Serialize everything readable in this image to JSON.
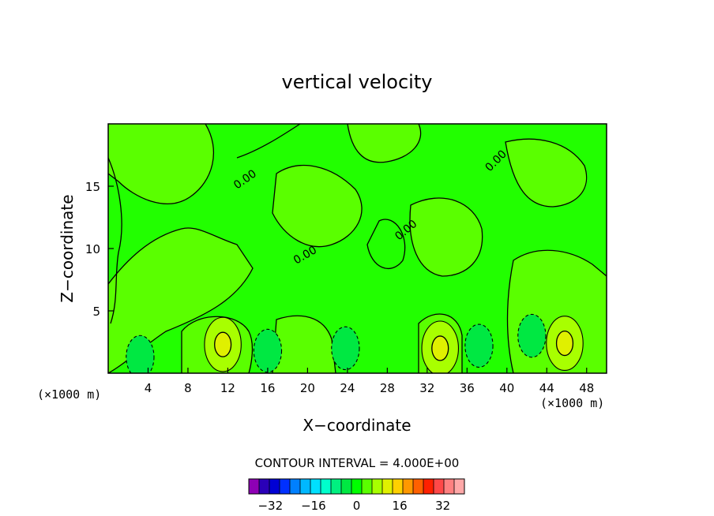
{
  "chart_data": {
    "type": "heatmap",
    "title": "vertical velocity",
    "xlabel": "X−coordinate",
    "ylabel": "Z−coordinate",
    "x_scale_note": "(×1000 m)",
    "x_unit_note": "(×1000 m)",
    "xlim": [
      0,
      50
    ],
    "ylim": [
      0,
      20
    ],
    "x_ticks": [
      4,
      8,
      12,
      16,
      20,
      24,
      28,
      32,
      36,
      40,
      44,
      48
    ],
    "y_ticks": [
      5,
      10,
      15
    ],
    "contour_label": "0.00",
    "background_level": 0,
    "features": [
      {
        "x": 11.5,
        "y": 2.3,
        "value": 8
      },
      {
        "x": 33.3,
        "y": 2.0,
        "value": 8
      },
      {
        "x": 45.8,
        "y": 2.4,
        "value": 8
      },
      {
        "x": 16.0,
        "y": 1.8,
        "value": -4
      },
      {
        "x": 23.8,
        "y": 2.0,
        "value": -4
      },
      {
        "x": 37.2,
        "y": 2.2,
        "value": -4
      },
      {
        "x": 42.5,
        "y": 3.0,
        "value": -4
      },
      {
        "x": 3.2,
        "y": 1.3,
        "value": -4
      }
    ],
    "colorbar": {
      "title": "CONTOUR INTERVAL = 4.000E+00",
      "tick_labels": [
        "−32",
        "−16",
        "0",
        "16",
        "32"
      ],
      "tick_values": [
        -32,
        -16,
        0,
        16,
        32
      ],
      "min": -40,
      "max": 40,
      "colors": [
        "#8e00b5",
        "#2a00b8",
        "#0000d4",
        "#0030ff",
        "#0080ff",
        "#00b8ff",
        "#00e0ff",
        "#00ffcc",
        "#00f080",
        "#00e842",
        "#00ff00",
        "#5aff00",
        "#a8ff00",
        "#e0f000",
        "#ffd000",
        "#ff9800",
        "#ff6000",
        "#ff2000",
        "#ff4848",
        "#ff8080",
        "#ffa8a8"
      ]
    }
  }
}
